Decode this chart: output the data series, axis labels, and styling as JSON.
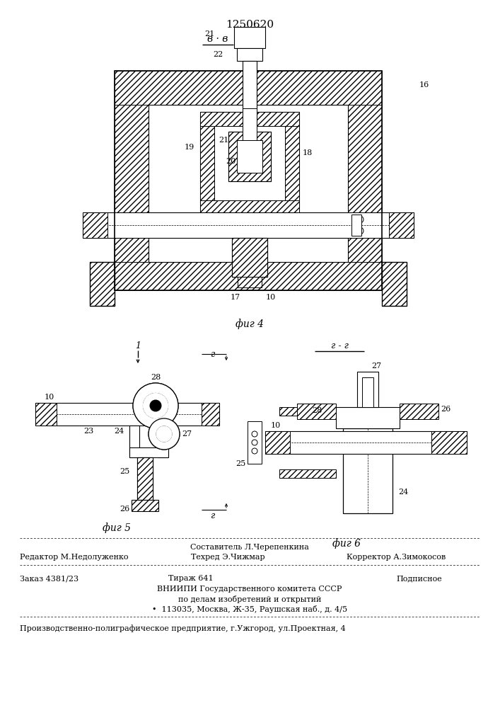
{
  "patent_number": "1250620",
  "section_label_bb": "в · в",
  "fig4_label": "фиг 4",
  "fig5_label": "фиг 5",
  "fig6_label": "фиг 6",
  "section_label_gg": "г - г",
  "editor_line": "Редактор М.Недолуженко",
  "composer_line": "Составитель Л.Черепенкина",
  "techred_line": "Техред Э.Чижмар",
  "corrector_line": "Корректор А.Зимокосов",
  "order_line": "Заказ 4381/23",
  "tirazh_line": "Тираж 641",
  "podpisnoe_line": "Подписное",
  "vniipи_line": "ВНИИПИ Государственного комитета СССР",
  "po_delam_line": "по делам изобретений и открытий",
  "address_line": "113035, Москва, Ж-35, Раушская наб., д. 4/5",
  "production_line": "Производственно-полиграфическое предприятие, г.Ужгород, ул.Проектная, 4",
  "bg_color": "#ffffff",
  "line_color": "#000000"
}
